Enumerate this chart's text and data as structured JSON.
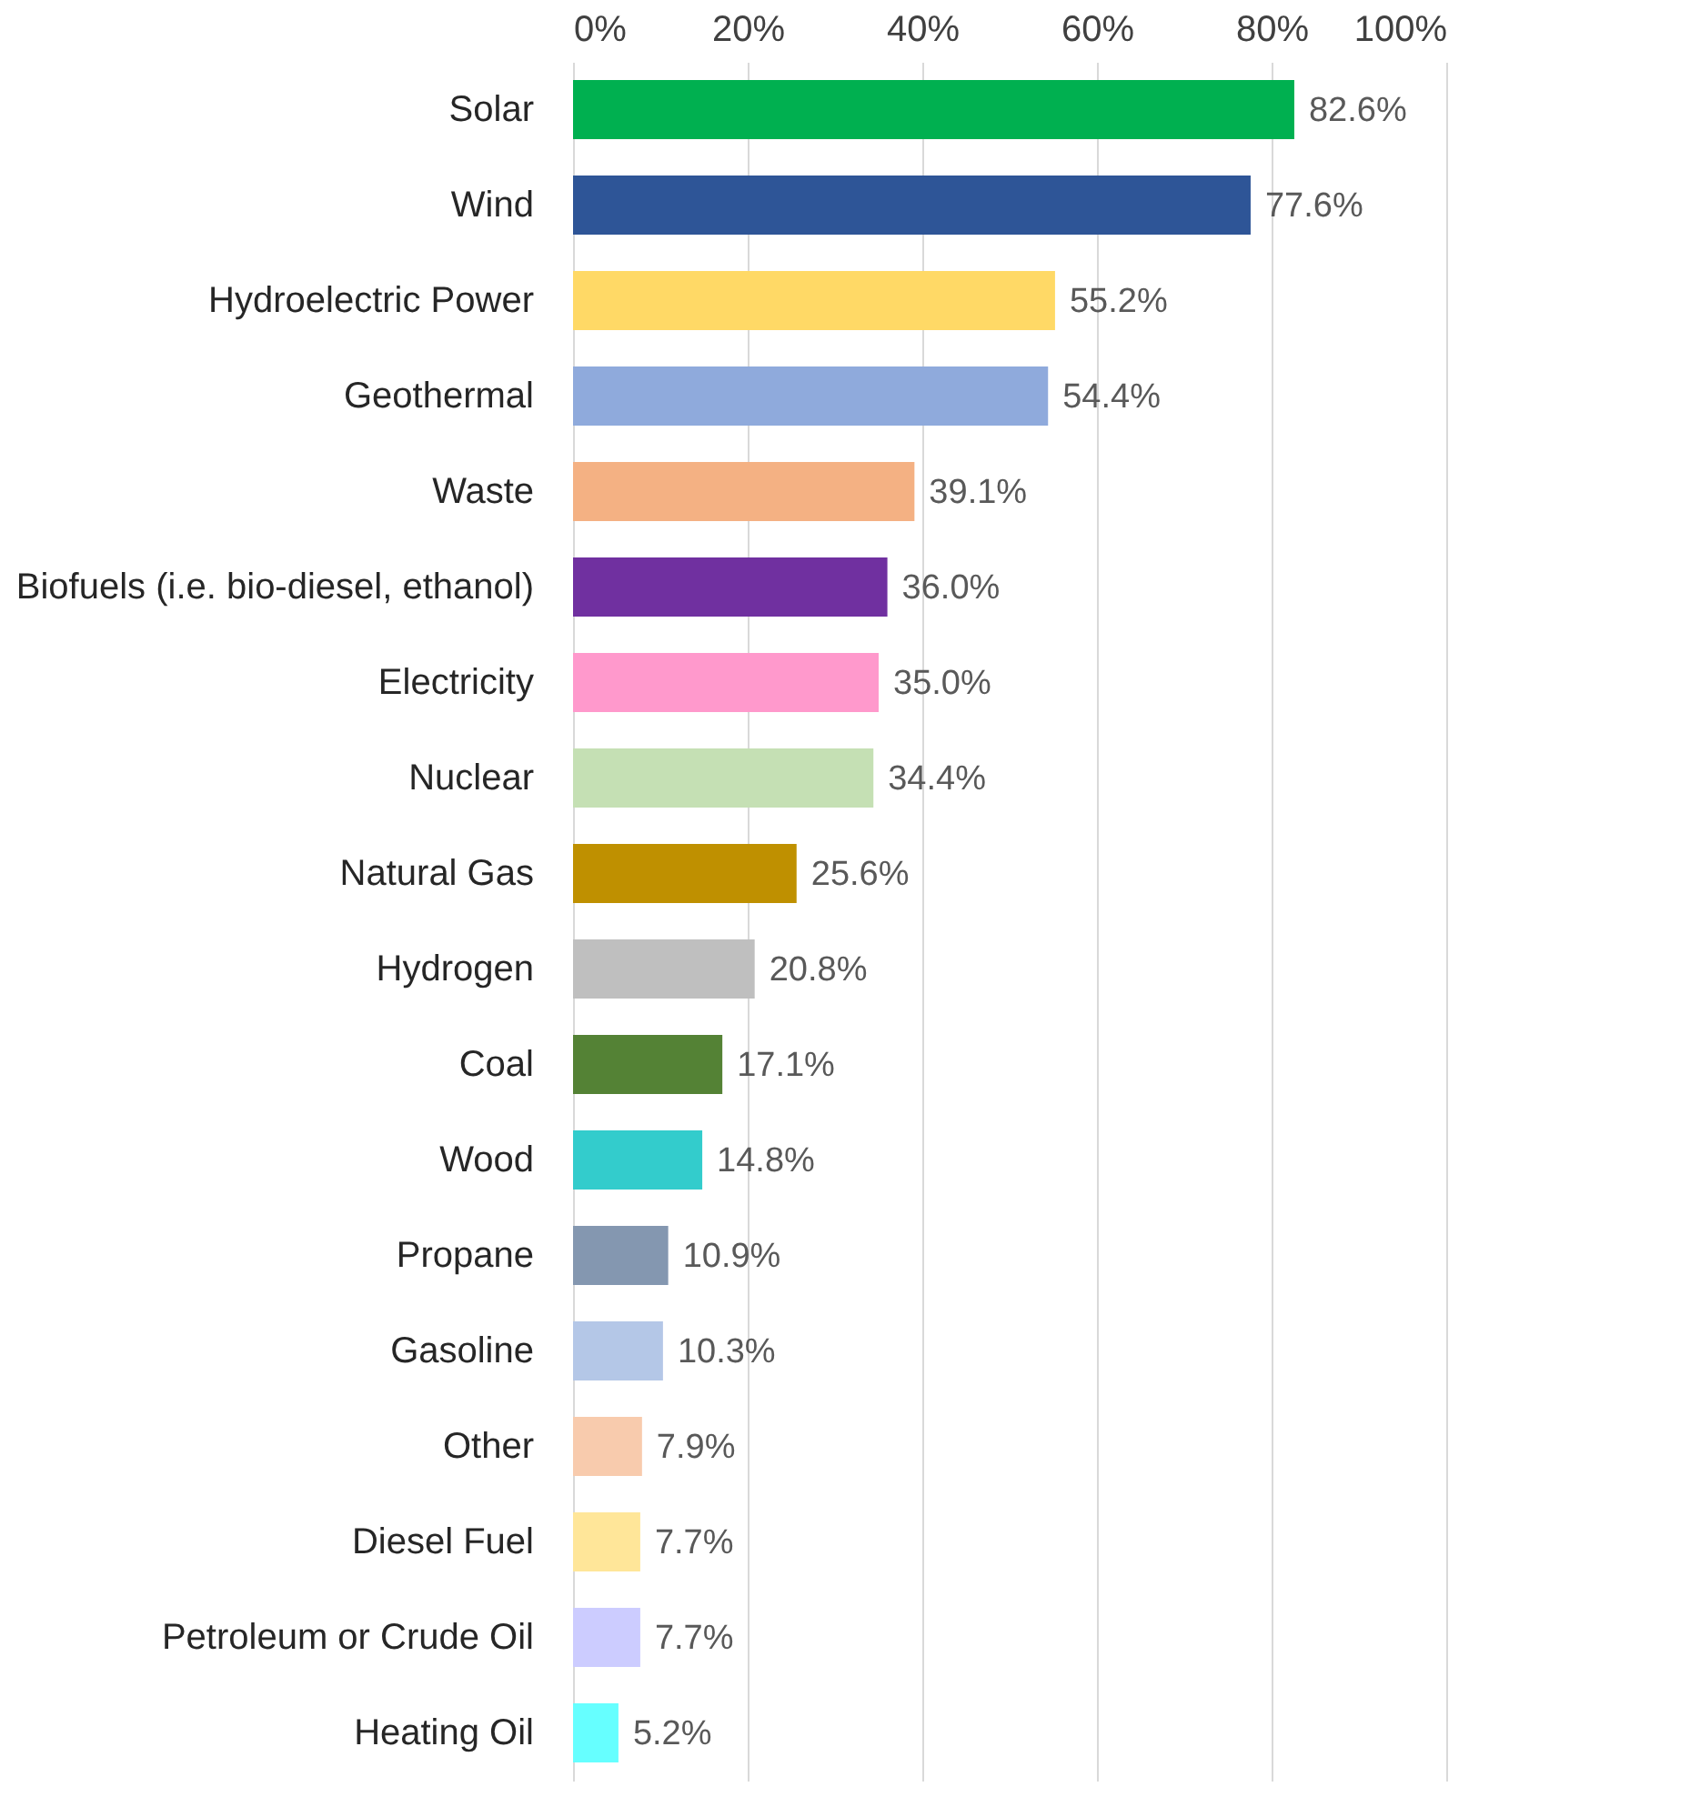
{
  "chart_data": {
    "type": "bar",
    "orientation": "horizontal",
    "categories": [
      "Solar",
      "Wind",
      "Hydroelectric Power",
      "Geothermal",
      "Waste",
      "Biofuels (i.e. bio-diesel, ethanol)",
      "Electricity",
      "Nuclear",
      "Natural Gas",
      "Hydrogen",
      "Coal",
      "Wood",
      "Propane",
      "Gasoline",
      "Other",
      "Diesel Fuel",
      "Petroleum or Crude Oil",
      "Heating Oil"
    ],
    "values": [
      82.6,
      77.6,
      55.2,
      54.4,
      39.1,
      36.0,
      35.0,
      34.4,
      25.6,
      20.8,
      17.1,
      14.8,
      10.9,
      10.3,
      7.9,
      7.7,
      7.7,
      5.2
    ],
    "value_labels": [
      "82.6%",
      "77.6%",
      "55.2%",
      "54.4%",
      "39.1%",
      "36.0%",
      "35.0%",
      "34.4%",
      "25.6%",
      "20.8%",
      "17.1%",
      "14.8%",
      "10.9%",
      "10.3%",
      "7.9%",
      "7.7%",
      "7.7%",
      "5.2%"
    ],
    "colors": [
      "#00b050",
      "#2e5597",
      "#ffd966",
      "#8faadc",
      "#f4b183",
      "#7030a0",
      "#ff99cc",
      "#c5e0b4",
      "#bf9000",
      "#bfbfbf",
      "#548235",
      "#33cccc",
      "#8497b0",
      "#b4c7e7",
      "#f8cbad",
      "#ffe699",
      "#ccccff",
      "#66ffff"
    ],
    "xlim": [
      0,
      100
    ],
    "xticks": [
      {
        "value": 0,
        "label": "0%"
      },
      {
        "value": 20,
        "label": "20%"
      },
      {
        "value": 40,
        "label": "40%"
      },
      {
        "value": 60,
        "label": "60%"
      },
      {
        "value": 80,
        "label": "80%"
      },
      {
        "value": 100,
        "label": "100%"
      }
    ],
    "grid": "x"
  }
}
